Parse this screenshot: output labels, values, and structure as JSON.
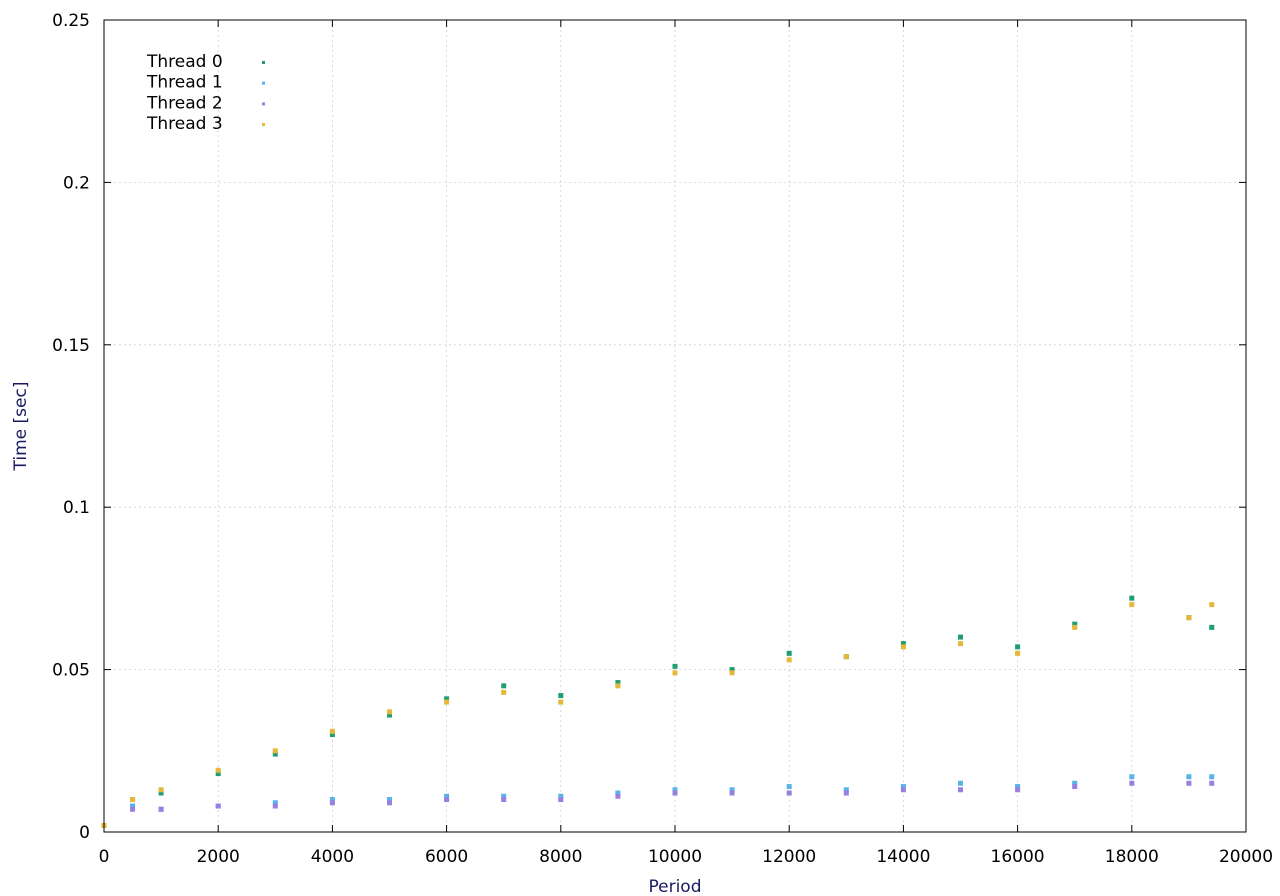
{
  "chart_data": {
    "type": "scatter",
    "title": "",
    "xlabel": "Period",
    "ylabel": "Time [sec]",
    "xlim": [
      0,
      20000
    ],
    "ylim": [
      0,
      0.25
    ],
    "xticks": [
      "0",
      "2000",
      "4000",
      "6000",
      "8000",
      "10000",
      "12000",
      "14000",
      "16000",
      "18000",
      "20000"
    ],
    "yticks": [
      "0",
      "0.05",
      "0.1",
      "0.15",
      "0.2",
      "0.25"
    ],
    "grid": true,
    "legend_position": "top-left",
    "series": [
      {
        "name": "Thread 0",
        "color": "#1f9e73",
        "points": [
          [
            0,
            0.002
          ],
          [
            500,
            0.01
          ],
          [
            1000,
            0.012
          ],
          [
            2000,
            0.018
          ],
          [
            3000,
            0.024
          ],
          [
            4000,
            0.03
          ],
          [
            5000,
            0.036
          ],
          [
            6000,
            0.041
          ],
          [
            7000,
            0.045
          ],
          [
            8000,
            0.042
          ],
          [
            9000,
            0.046
          ],
          [
            10000,
            0.051
          ],
          [
            11000,
            0.05
          ],
          [
            12000,
            0.055
          ],
          [
            13000,
            0.054
          ],
          [
            14000,
            0.058
          ],
          [
            15000,
            0.06
          ],
          [
            16000,
            0.057
          ],
          [
            17000,
            0.064
          ],
          [
            18000,
            0.072
          ],
          [
            19000,
            0.066
          ],
          [
            19400,
            0.063
          ]
        ]
      },
      {
        "name": "Thread 1",
        "color": "#56b4e9",
        "points": [
          [
            0,
            0.002
          ],
          [
            500,
            0.008
          ],
          [
            1000,
            0.007
          ],
          [
            2000,
            0.008
          ],
          [
            3000,
            0.009
          ],
          [
            4000,
            0.01
          ],
          [
            5000,
            0.01
          ],
          [
            6000,
            0.011
          ],
          [
            7000,
            0.011
          ],
          [
            8000,
            0.011
          ],
          [
            9000,
            0.012
          ],
          [
            10000,
            0.013
          ],
          [
            11000,
            0.013
          ],
          [
            12000,
            0.014
          ],
          [
            13000,
            0.013
          ],
          [
            14000,
            0.014
          ],
          [
            15000,
            0.015
          ],
          [
            16000,
            0.014
          ],
          [
            17000,
            0.015
          ],
          [
            18000,
            0.017
          ],
          [
            19000,
            0.017
          ],
          [
            19400,
            0.017
          ]
        ]
      },
      {
        "name": "Thread 2",
        "color": "#9b7fe0",
        "points": [
          [
            0,
            0.002
          ],
          [
            500,
            0.007
          ],
          [
            1000,
            0.007
          ],
          [
            2000,
            0.008
          ],
          [
            3000,
            0.008
          ],
          [
            4000,
            0.009
          ],
          [
            5000,
            0.009
          ],
          [
            6000,
            0.01
          ],
          [
            7000,
            0.01
          ],
          [
            8000,
            0.01
          ],
          [
            9000,
            0.011
          ],
          [
            10000,
            0.012
          ],
          [
            11000,
            0.012
          ],
          [
            12000,
            0.012
          ],
          [
            13000,
            0.012
          ],
          [
            14000,
            0.013
          ],
          [
            15000,
            0.013
          ],
          [
            16000,
            0.013
          ],
          [
            17000,
            0.014
          ],
          [
            18000,
            0.015
          ],
          [
            19000,
            0.015
          ],
          [
            19400,
            0.015
          ]
        ]
      },
      {
        "name": "Thread 3",
        "color": "#e6b83a",
        "points": [
          [
            0,
            0.002
          ],
          [
            500,
            0.01
          ],
          [
            1000,
            0.013
          ],
          [
            2000,
            0.019
          ],
          [
            3000,
            0.025
          ],
          [
            4000,
            0.031
          ],
          [
            5000,
            0.037
          ],
          [
            6000,
            0.04
          ],
          [
            7000,
            0.043
          ],
          [
            8000,
            0.04
          ],
          [
            9000,
            0.045
          ],
          [
            10000,
            0.049
          ],
          [
            11000,
            0.049
          ],
          [
            12000,
            0.053
          ],
          [
            13000,
            0.054
          ],
          [
            14000,
            0.057
          ],
          [
            15000,
            0.058
          ],
          [
            16000,
            0.055
          ],
          [
            17000,
            0.063
          ],
          [
            18000,
            0.07
          ],
          [
            19000,
            0.066
          ],
          [
            19400,
            0.07
          ]
        ]
      }
    ]
  }
}
